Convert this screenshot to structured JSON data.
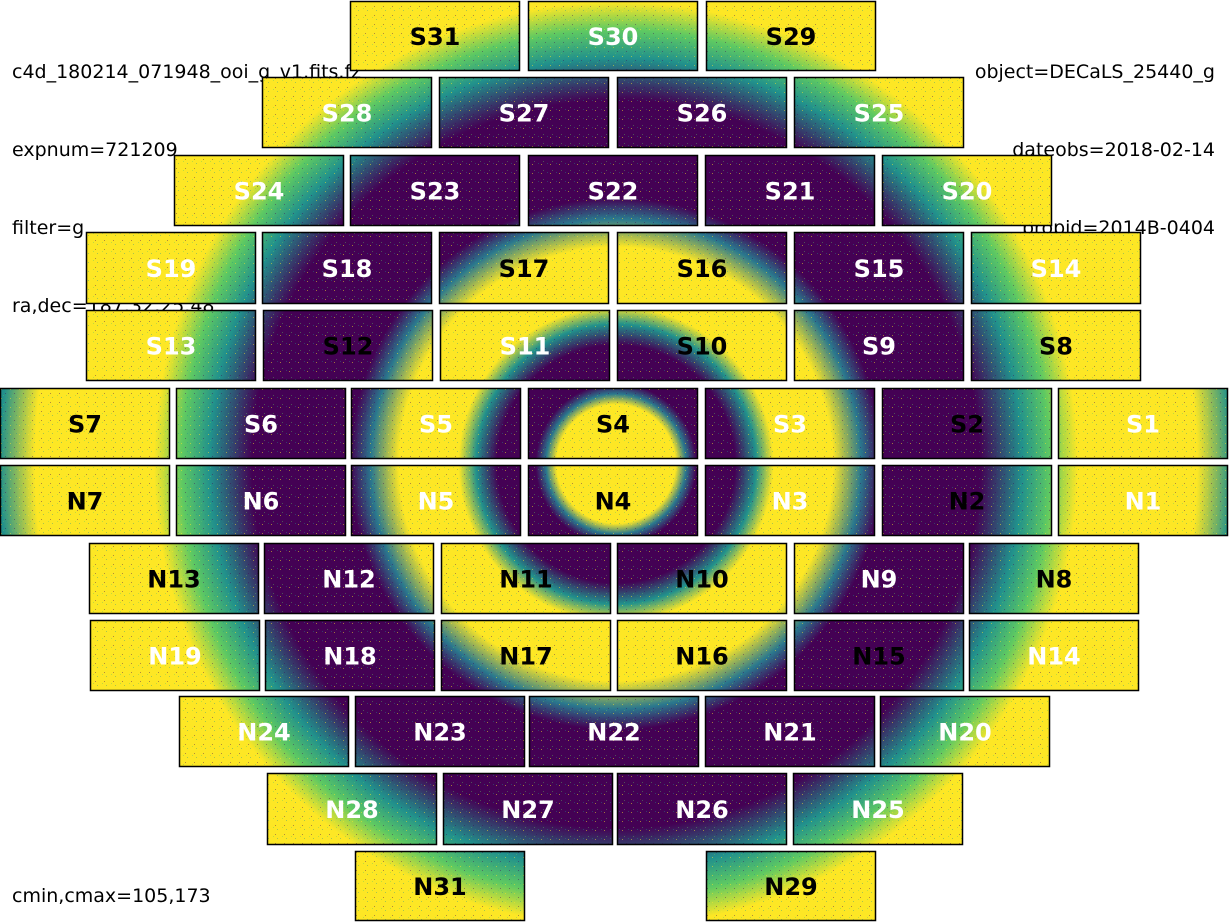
{
  "header": {
    "left": [
      "c4d_180214_071948_ooi_g_v1.fits.fz",
      "expnum=721209",
      "filter=g",
      "ra,dec=187.32,25.48"
    ],
    "right": [
      "object=DECaLS_25440_g",
      "dateobs=2018-02-14",
      "propid=2014B-0404"
    ]
  },
  "footer": {
    "color_limits": "cmin,cmax=105,173"
  },
  "colors": {
    "dark": "#440154",
    "mid": "#21918c",
    "teal": "#2a788e",
    "green": "#5ec962",
    "bright": "#fde725"
  },
  "ccds": [
    {
      "name": "S31",
      "text": "dark"
    },
    {
      "name": "S30",
      "text": "light"
    },
    {
      "name": "S29",
      "text": "dark"
    },
    {
      "name": "S28",
      "text": "light"
    },
    {
      "name": "S27",
      "text": "light"
    },
    {
      "name": "S26",
      "text": "light"
    },
    {
      "name": "S25",
      "text": "light"
    },
    {
      "name": "S24",
      "text": "light"
    },
    {
      "name": "S23",
      "text": "light"
    },
    {
      "name": "S22",
      "text": "light"
    },
    {
      "name": "S21",
      "text": "light"
    },
    {
      "name": "S20",
      "text": "light"
    },
    {
      "name": "S19",
      "text": "light"
    },
    {
      "name": "S18",
      "text": "light"
    },
    {
      "name": "S17",
      "text": "dark"
    },
    {
      "name": "S16",
      "text": "dark"
    },
    {
      "name": "S15",
      "text": "light"
    },
    {
      "name": "S14",
      "text": "light"
    },
    {
      "name": "S13",
      "text": "light"
    },
    {
      "name": "S12",
      "text": "dark"
    },
    {
      "name": "S11",
      "text": "light"
    },
    {
      "name": "S10",
      "text": "dark"
    },
    {
      "name": "S9",
      "text": "light"
    },
    {
      "name": "S8",
      "text": "dark"
    },
    {
      "name": "S7",
      "text": "dark"
    },
    {
      "name": "S6",
      "text": "light"
    },
    {
      "name": "S5",
      "text": "light"
    },
    {
      "name": "S4",
      "text": "dark"
    },
    {
      "name": "S3",
      "text": "light"
    },
    {
      "name": "S2",
      "text": "dark"
    },
    {
      "name": "S1",
      "text": "light"
    },
    {
      "name": "N7",
      "text": "dark"
    },
    {
      "name": "N6",
      "text": "light"
    },
    {
      "name": "N5",
      "text": "light"
    },
    {
      "name": "N4",
      "text": "dark"
    },
    {
      "name": "N3",
      "text": "light"
    },
    {
      "name": "N2",
      "text": "dark"
    },
    {
      "name": "N1",
      "text": "light"
    },
    {
      "name": "N13",
      "text": "dark"
    },
    {
      "name": "N12",
      "text": "light"
    },
    {
      "name": "N11",
      "text": "dark"
    },
    {
      "name": "N10",
      "text": "dark"
    },
    {
      "name": "N9",
      "text": "light"
    },
    {
      "name": "N8",
      "text": "dark"
    },
    {
      "name": "N19",
      "text": "light"
    },
    {
      "name": "N18",
      "text": "light"
    },
    {
      "name": "N17",
      "text": "dark"
    },
    {
      "name": "N16",
      "text": "dark"
    },
    {
      "name": "N15",
      "text": "dark"
    },
    {
      "name": "N14",
      "text": "light"
    },
    {
      "name": "N24",
      "text": "light"
    },
    {
      "name": "N23",
      "text": "light"
    },
    {
      "name": "N22",
      "text": "light"
    },
    {
      "name": "N21",
      "text": "light"
    },
    {
      "name": "N20",
      "text": "light"
    },
    {
      "name": "N28",
      "text": "light"
    },
    {
      "name": "N27",
      "text": "light"
    },
    {
      "name": "N26",
      "text": "light"
    },
    {
      "name": "N25",
      "text": "light"
    },
    {
      "name": "N31",
      "text": "dark"
    },
    {
      "name": "N29",
      "text": "dark"
    }
  ]
}
